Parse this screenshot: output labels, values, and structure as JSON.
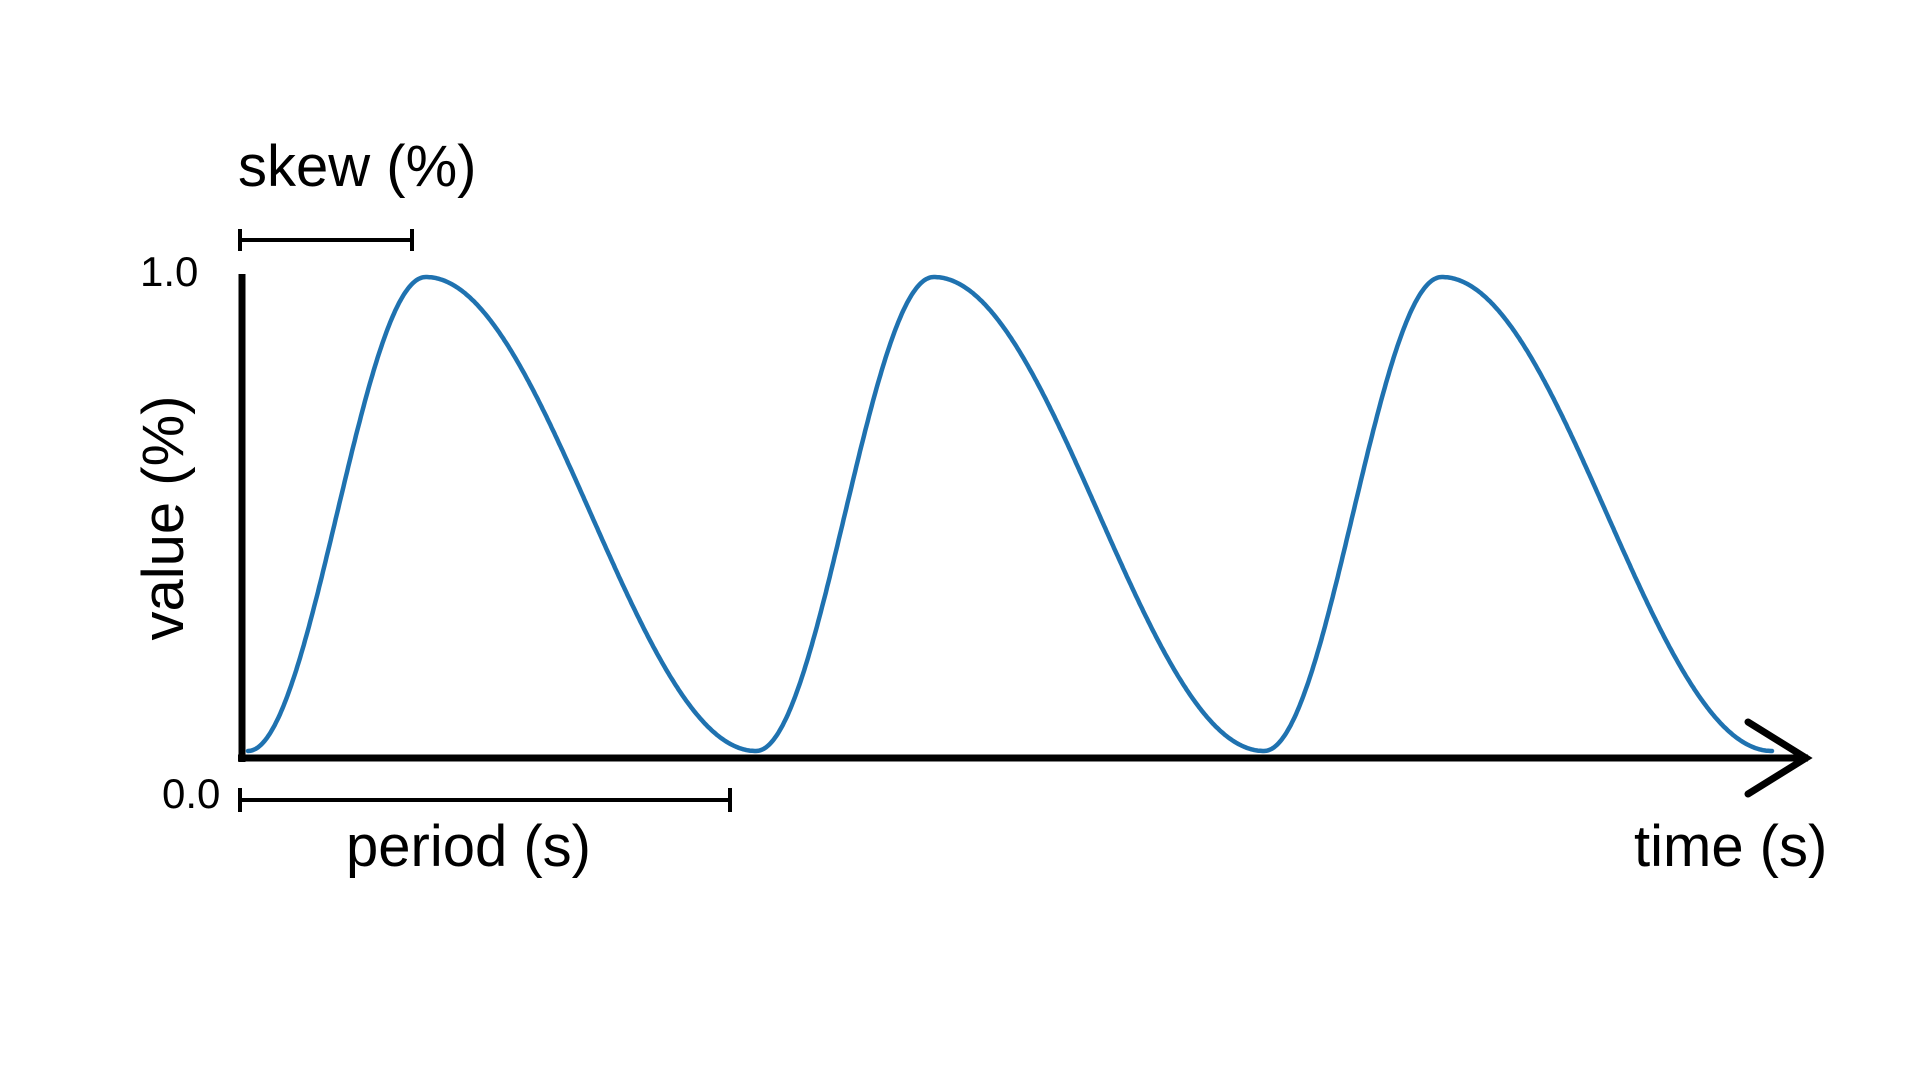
{
  "labels": {
    "skew": "skew (%)",
    "period": "period (s)",
    "y_axis": "value (%)",
    "x_axis": "time (s)",
    "y_max": "1.0",
    "y_min": "0.0"
  },
  "colors": {
    "waveform": "#1f72b0",
    "axes": "#000000"
  },
  "waveform": {
    "cycles": 3,
    "skew_percent": 35,
    "min_value": 0.0,
    "max_value": 1.0
  }
}
